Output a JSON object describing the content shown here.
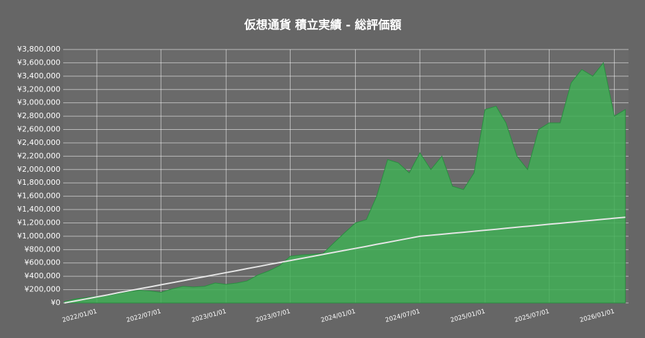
{
  "chart_data": {
    "type": "area",
    "title": "仮想通貨 積立実績 - 総評価額",
    "x": [
      "2021/10/01",
      "2021/11/01",
      "2021/12/01",
      "2022/01/01",
      "2022/02/01",
      "2022/03/01",
      "2022/04/01",
      "2022/05/01",
      "2022/06/01",
      "2022/07/01",
      "2022/08/01",
      "2022/09/01",
      "2022/10/01",
      "2022/11/01",
      "2022/12/01",
      "2023/01/01",
      "2023/02/01",
      "2023/03/01",
      "2023/04/01",
      "2023/05/01",
      "2023/06/01",
      "2023/07/01",
      "2023/08/01",
      "2023/09/01",
      "2023/10/01",
      "2023/11/01",
      "2023/12/01",
      "2024/01/01",
      "2024/02/01",
      "2024/03/01",
      "2024/04/01",
      "2024/05/01",
      "2024/06/01",
      "2024/07/01",
      "2024/08/01",
      "2024/09/01",
      "2024/10/01",
      "2024/11/01",
      "2024/12/01",
      "2025/01/01",
      "2025/02/01",
      "2025/03/01",
      "2025/04/01",
      "2025/05/01",
      "2025/06/01",
      "2025/07/01",
      "2025/08/01",
      "2025/09/01",
      "2025/10/01",
      "2025/11/01",
      "2025/12/01",
      "2026/01/01",
      "2026/02/01"
    ],
    "series": [
      {
        "color": "#3fae55",
        "values": [
          20000,
          60000,
          80000,
          100000,
          110000,
          140000,
          170000,
          190000,
          180000,
          160000,
          210000,
          250000,
          240000,
          250000,
          300000,
          280000,
          300000,
          330000,
          420000,
          480000,
          560000,
          700000,
          720000,
          730000,
          740000,
          900000,
          1050000,
          1200000,
          1250000,
          1600000,
          2150000,
          2100000,
          1950000,
          2250000,
          2000000,
          2200000,
          1750000,
          1700000,
          1950000,
          2900000,
          2950000,
          2700000,
          2200000,
          2000000,
          2600000,
          2700000,
          2700000,
          3300000,
          3500000,
          3400000,
          3600000,
          2800000,
          2900000
        ]
      },
      {
        "color": "#e6e6e6",
        "values": [
          0,
          30000,
          60000,
          91000,
          121000,
          152000,
          182000,
          212000,
          242000,
          273000,
          303000,
          333000,
          364000,
          394000,
          424000,
          455000,
          485000,
          515000,
          545000,
          576000,
          606000,
          636000,
          667000,
          697000,
          727000,
          758000,
          788000,
          818000,
          848000,
          879000,
          909000,
          939000,
          970000,
          1000000,
          1015000,
          1030000,
          1045000,
          1060000,
          1075000,
          1090000,
          1105000,
          1120000,
          1135000,
          1150000,
          1165000,
          1180000,
          1195000,
          1210000,
          1225000,
          1240000,
          1255000,
          1270000,
          1285000
        ]
      }
    ],
    "xlim": [
      "2021/09/28",
      "2026/02/10"
    ],
    "xticks": [
      "2022/01/01",
      "2022/07/01",
      "2023/01/01",
      "2023/07/01",
      "2024/01/01",
      "2024/07/01",
      "2025/01/01",
      "2025/07/01",
      "2026/01/01"
    ],
    "ylim": [
      0,
      3800000
    ],
    "yticks": [
      {
        "value": 0,
        "label": "¥0"
      },
      {
        "value": 200000,
        "label": "¥200,000"
      },
      {
        "value": 400000,
        "label": "¥400,000"
      },
      {
        "value": 600000,
        "label": "¥600,000"
      },
      {
        "value": 800000,
        "label": "¥800,000"
      },
      {
        "value": 1000000,
        "label": "¥1,000,000"
      },
      {
        "value": 1200000,
        "label": "¥1,200,000"
      },
      {
        "value": 1400000,
        "label": "¥1,400,000"
      },
      {
        "value": 1600000,
        "label": "¥1,600,000"
      },
      {
        "value": 1800000,
        "label": "¥1,800,000"
      },
      {
        "value": 2000000,
        "label": "¥2,000,000"
      },
      {
        "value": 2200000,
        "label": "¥2,200,000"
      },
      {
        "value": 2400000,
        "label": "¥2,400,000"
      },
      {
        "value": 2600000,
        "label": "¥2,600,000"
      },
      {
        "value": 2800000,
        "label": "¥2,800,000"
      },
      {
        "value": 3000000,
        "label": "¥3,000,000"
      },
      {
        "value": 3200000,
        "label": "¥3,200,000"
      },
      {
        "value": 3400000,
        "label": "¥3,400,000"
      },
      {
        "value": 3600000,
        "label": "¥3,600,000"
      },
      {
        "value": 3800000,
        "label": "¥3,800,000"
      }
    ],
    "grid": true
  }
}
